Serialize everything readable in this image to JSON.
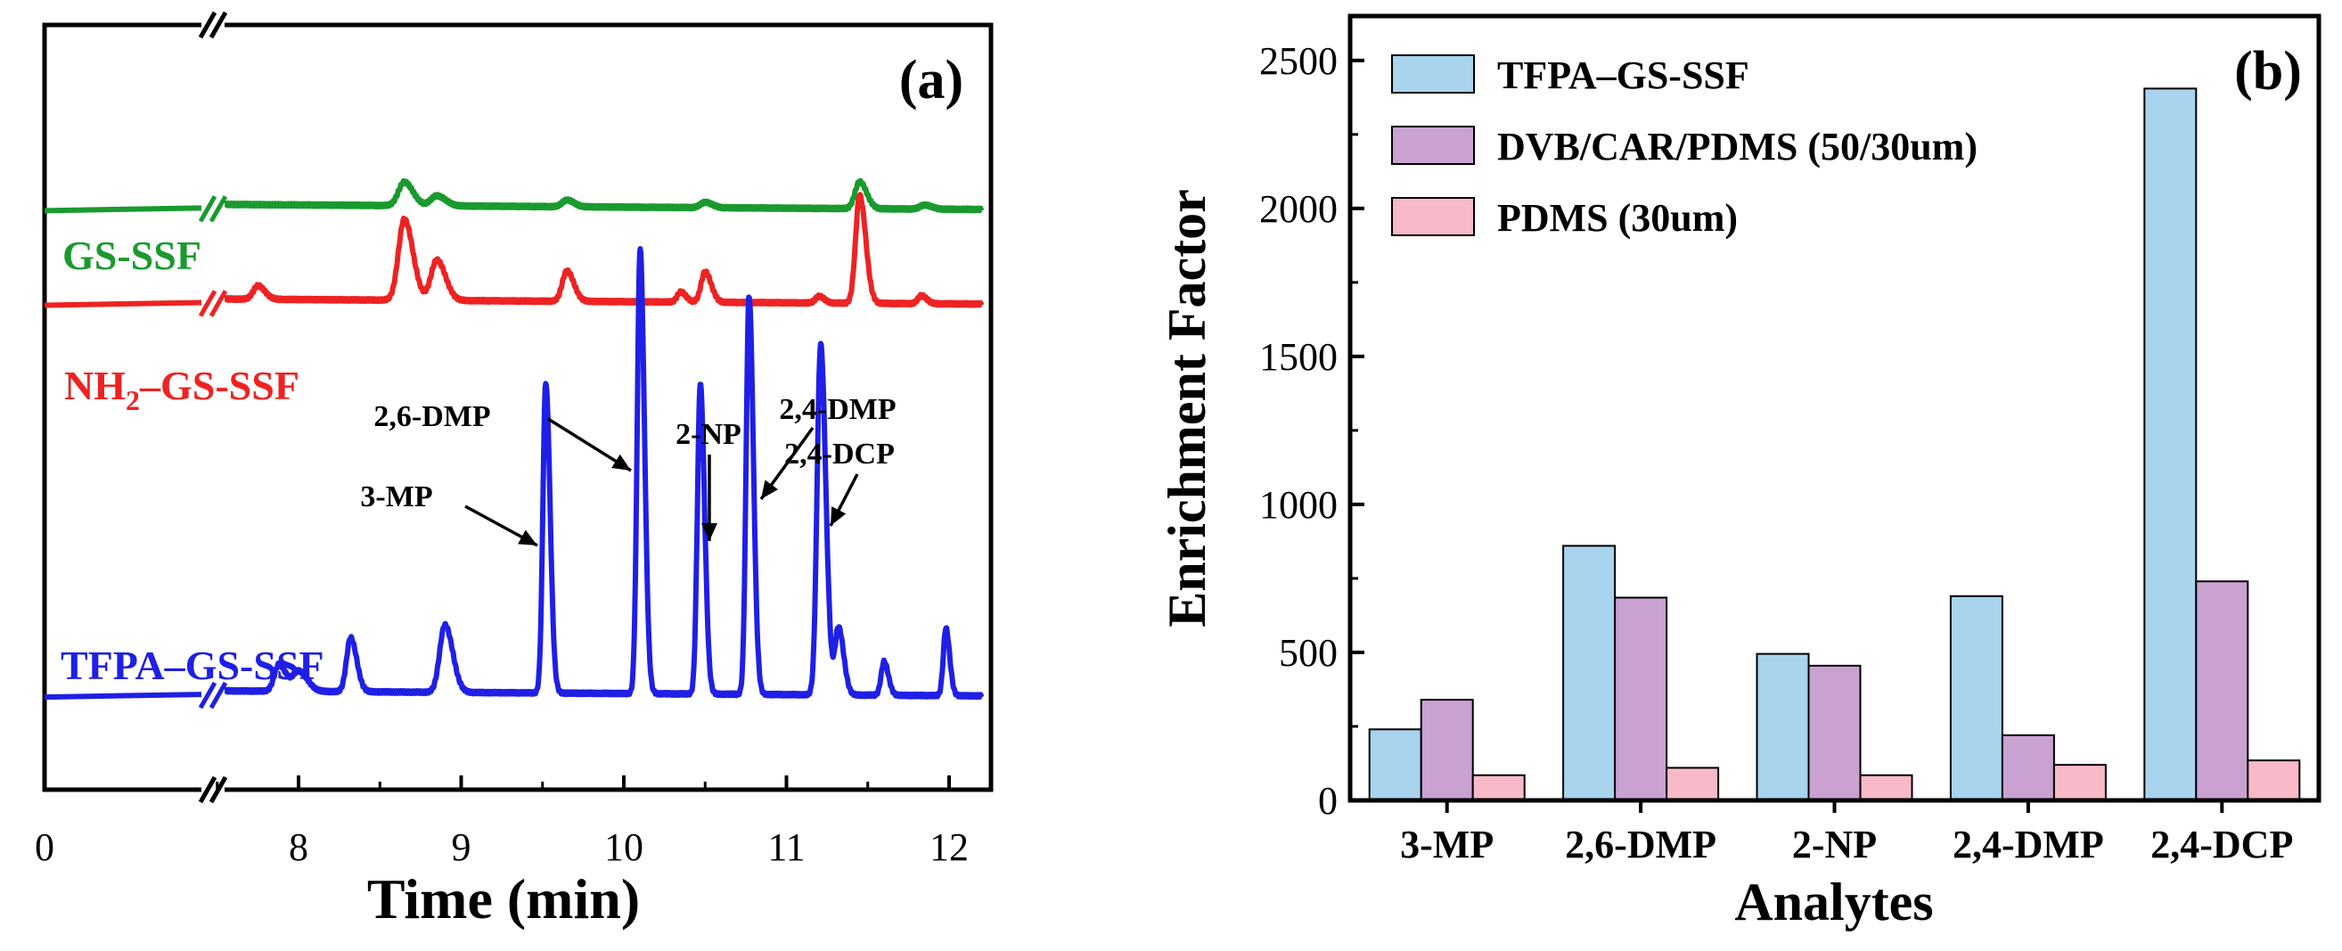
{
  "chart_data": [
    {
      "type": "line",
      "panel_label": "(a)",
      "title": "",
      "xlabel": "Time (min)",
      "ylabel": "",
      "axis_break": "broken x-axis between 0 and ~7.5 min",
      "xlim": [
        7.5,
        12.2
      ],
      "x_ticks": [
        {
          "value": 0,
          "label": "0"
        },
        {
          "value": 8,
          "label": "8"
        },
        {
          "value": 9,
          "label": "9"
        },
        {
          "value": 10,
          "label": "10"
        },
        {
          "value": 11,
          "label": "11"
        },
        {
          "value": 12,
          "label": "12"
        }
      ],
      "series": [
        {
          "name": "GS-SSF",
          "color": "#1a9a2e",
          "baseline": 0.77,
          "peaks": [
            [
              8.65,
              0.035,
              0.05
            ],
            [
              8.85,
              0.015,
              0.05
            ],
            [
              9.65,
              0.01,
              0.04
            ],
            [
              10.5,
              0.008,
              0.04
            ],
            [
              11.45,
              0.04,
              0.04
            ],
            [
              11.85,
              0.006,
              0.04
            ]
          ]
        },
        {
          "name": "NH₂–GS-SSF",
          "label_main": "NH",
          "label_sub": "2",
          "label_rest": "–GS-SSF",
          "color": "#ee2222",
          "baseline": 0.63,
          "peaks": [
            [
              7.75,
              0.02,
              0.04
            ],
            [
              8.65,
              0.12,
              0.05
            ],
            [
              8.85,
              0.06,
              0.05
            ],
            [
              9.65,
              0.045,
              0.04
            ],
            [
              10.35,
              0.015,
              0.03
            ],
            [
              10.5,
              0.045,
              0.035
            ],
            [
              11.2,
              0.01,
              0.03
            ],
            [
              11.45,
              0.16,
              0.035
            ],
            [
              11.83,
              0.012,
              0.03
            ]
          ]
        },
        {
          "name": "TFPA–GS-SSF",
          "color": "#1f1fe6",
          "baseline": 0.05,
          "peaks": [
            [
              7.88,
              0.04,
              0.04
            ],
            [
              8.0,
              0.03,
              0.05
            ],
            [
              8.32,
              0.08,
              0.035
            ],
            [
              8.9,
              0.1,
              0.045
            ],
            [
              9.52,
              0.46,
              0.025
            ],
            [
              10.1,
              0.66,
              0.025
            ],
            [
              10.47,
              0.46,
              0.025
            ],
            [
              10.77,
              0.59,
              0.025
            ],
            [
              11.21,
              0.52,
              0.03
            ],
            [
              11.32,
              0.1,
              0.03
            ],
            [
              11.6,
              0.05,
              0.025
            ],
            [
              11.98,
              0.1,
              0.022
            ]
          ]
        }
      ],
      "annotations": [
        {
          "text": "3-MP",
          "x": 9.52
        },
        {
          "text": "2,6-DMP",
          "x": 10.1
        },
        {
          "text": "2-NP",
          "x": 10.47
        },
        {
          "text": "2,4-DMP",
          "x": 10.77
        },
        {
          "text": "2,4-DCP",
          "x": 11.21
        }
      ]
    },
    {
      "type": "bar",
      "panel_label": "(b)",
      "title": "",
      "xlabel": "Analytes",
      "ylabel": "Enrichment Factor",
      "ylim": [
        0,
        2650
      ],
      "y_ticks": [
        0,
        500,
        1000,
        1500,
        2000,
        2500
      ],
      "categories": [
        "3-MP",
        "2,6-DMP",
        "2-NP",
        "2,4-DMP",
        "2,4-DCP"
      ],
      "series": [
        {
          "name": "TFPA–GS-SSF",
          "color": "#a8d4ee",
          "values": [
            240,
            860,
            495,
            690,
            2405
          ]
        },
        {
          "name": "DVB/CAR/PDMS (50/30um)",
          "color": "#c9a2d2",
          "values": [
            340,
            685,
            455,
            220,
            740
          ]
        },
        {
          "name": "PDMS (30um)",
          "color": "#f8b9c8",
          "values": [
            85,
            110,
            85,
            120,
            135
          ]
        }
      ],
      "legend": "top-left"
    }
  ]
}
